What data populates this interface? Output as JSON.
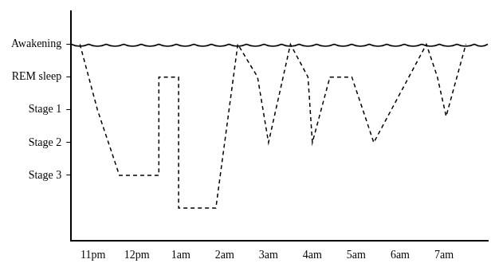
{
  "chart_data": {
    "type": "line",
    "x": [
      -0.3,
      0.1,
      0.6,
      1.5,
      1.5,
      1.95,
      1.95,
      2.8,
      3.3,
      3.75,
      4.0,
      4.5,
      4.9,
      5.0,
      5.4,
      5.9,
      6.4,
      7.2,
      7.6,
      7.85,
      8.05,
      8.5
    ],
    "values": [
      5,
      3,
      1,
      1,
      4,
      4,
      0,
      0,
      5,
      4,
      2,
      5,
      4,
      2,
      4,
      4,
      2,
      4,
      5,
      4,
      2.8,
      5
    ],
    "color": "#000000",
    "line_style": "dashed",
    "marker": "none",
    "xlim": [
      -0.5,
      9
    ],
    "xticks": [
      {
        "value": 0,
        "label": "11pm"
      },
      {
        "value": 1,
        "label": "12pm"
      },
      {
        "value": 2,
        "label": "1am"
      },
      {
        "value": 3,
        "label": "2am"
      },
      {
        "value": 4,
        "label": "3am"
      },
      {
        "value": 5,
        "label": "4am"
      },
      {
        "value": 6,
        "label": "5am"
      },
      {
        "value": 7,
        "label": "6am"
      },
      {
        "value": 8,
        "label": "7am"
      }
    ],
    "ylim": [
      -1,
      6
    ],
    "yticks": [
      {
        "value": 1,
        "label": "Stage 3"
      },
      {
        "value": 2,
        "label": "Stage 2"
      },
      {
        "value": 3,
        "label": "Stage 1"
      },
      {
        "value": 4,
        "label": "REM sleep"
      },
      {
        "value": 5,
        "label": "Awakening"
      }
    ],
    "grid": false
  }
}
